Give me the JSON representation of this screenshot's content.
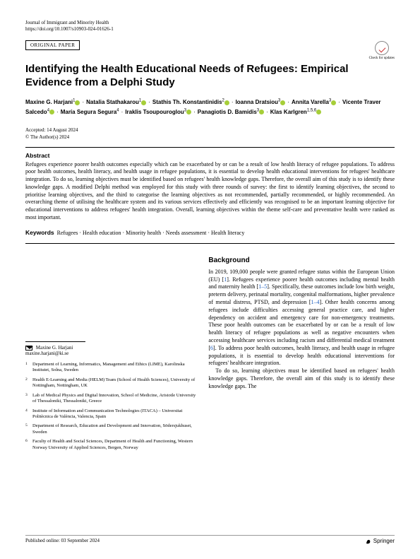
{
  "header": {
    "journal": "Journal of Immigrant and Minority Health",
    "doi": "https://doi.org/10.1007/s10903-024-01626-1",
    "category": "ORIGINAL PAPER",
    "check_updates": "Check for updates"
  },
  "title": "Identifying the Health Educational Needs of Refugees: Empirical Evidence from a Delphi Study",
  "authors": [
    {
      "name": "Maxine G. Harjani",
      "sup": "1",
      "orcid": true
    },
    {
      "name": "Natalia Stathakarou",
      "sup": "1",
      "orcid": true
    },
    {
      "name": "Stathis Th. Konstantinidis",
      "sup": "2",
      "orcid": true
    },
    {
      "name": "Ioanna Dratsiou",
      "sup": "3",
      "orcid": true
    },
    {
      "name": "Annita Varella",
      "sup": "3",
      "orcid": true
    },
    {
      "name": "Vicente Traver Salcedo",
      "sup": "4",
      "orcid": true
    },
    {
      "name": "María Segura Segura",
      "sup": "4",
      "orcid": false
    },
    {
      "name": "Iraklis Tsoupouroglou",
      "sup": "3",
      "orcid": true
    },
    {
      "name": "Panagiotis D. Bamidis",
      "sup": "3",
      "orcid": true
    },
    {
      "name": "Klas Karlgren",
      "sup": "1,5,6",
      "orcid": true
    }
  ],
  "accepted": "Accepted: 14 August 2024",
  "copyright": "© The Author(s) 2024",
  "abstract_heading": "Abstract",
  "abstract": "Refugees experience poorer health outcomes especially which can be exacerbated by or can be a result of low health literacy of refugee populations. To address poor health outcomes, health literacy, and health usage in refugee populations, it is essential to develop health educational interventions for refugees' healthcare integration. To do so, learning objectives must be identified based on refugees' health knowledge gaps. Therefore, the overall aim of this study is to identify these knowledge gaps. A modified Delphi method was employed for this study with three rounds of survey: the first to identify learning objectives, the second to prioritise learning objectives, and the third to categorise the learning objectives as not recommended, partially recommended, or highly recommended. An overarching theme of utilising the healthcare system and its various services effectively and efficiently was recognised to be an important learning objective for educational interventions to address refugees' health integration. Overall, learning objectives within the theme self-care and preventative health were ranked as most important.",
  "keywords_label": "Keywords",
  "keywords": "Refugees · Health education · Minority health · Needs assessment · Health literacy",
  "background_heading": "Background",
  "body_p1": "In 2019, 109,000 people were granted refugee status within the European Union (EU) [1]. Refugees experience poorer health outcomes including mental health and maternity health [1–5]. Specifically, these outcomes include low birth weight, preterm delivery, perinatal mortality, congenital malformations, higher prevalence of mental distress, PTSD, and depression [1–4]. Other health concerns among refugees include difficulties accessing general practice care, and higher dependency on accident and emergency care for non-emergency treatments. These poor health outcomes can be exacerbated by or can be a result of low health literacy of refugee populations as well as negative encounters when accessing healthcare services including racism and differential medical treatment [6]. To address poor health outcomes, health literacy, and health usage in refugee populations, it is essential to develop health educational interventions for refugees' healthcare integration.",
  "body_p2": "To do so, learning objectives must be identified based on refugees' health knowledge gaps. Therefore, the overall aim of this study is to identify these knowledge gaps. The",
  "correspondence": {
    "name": "Maxine G. Harjani",
    "email": "maxine.harjani@ki.se"
  },
  "affiliations": [
    {
      "num": "1",
      "text": "Department of Learning, Informatics, Management and Ethics (LIME), Karolinska Institutet, Solna, Sweden"
    },
    {
      "num": "2",
      "text": "Health E-Learning and Media (HELM) Team (School of Health Sciences), University of Nottingham, Nottingham, UK"
    },
    {
      "num": "3",
      "text": "Lab of Medical Physics and Digital Innovation, School of Medicine, Aristotle University of Thessaloniki, Thessaloniki, Greece"
    },
    {
      "num": "4",
      "text": "Institute of Information and Communication Technologies (ITACA) – Universitat Politècnica de València, Valencia, Spain"
    },
    {
      "num": "5",
      "text": "Department of Research, Education and Development and Innovation, Södersjukhuset, Sweden"
    },
    {
      "num": "6",
      "text": "Faculty of Health and Social Sciences, Department of Health and Functioning, Western Norway University of Applied Sciences, Bergen, Norway"
    }
  ],
  "footer": {
    "published": "Published online: 03 September 2024",
    "publisher": "Springer"
  },
  "colors": {
    "orcid": "#a6ce39",
    "link": "#2060c0"
  }
}
